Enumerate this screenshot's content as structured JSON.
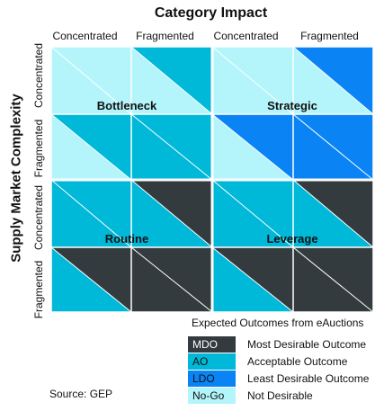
{
  "title_top": "Category Impact",
  "title_left": "Supply Market Complexity",
  "column_headers": [
    "Concentrated",
    "Fragmented",
    "Concentrated",
    "Fragmented"
  ],
  "row_headers": [
    "Concentrated",
    "Fragmented",
    "Concentrated",
    "Fragmented"
  ],
  "quadrants": [
    {
      "label": "Bottleneck"
    },
    {
      "label": "Strategic"
    },
    {
      "label": "Routine"
    },
    {
      "label": "Leverage"
    }
  ],
  "colors": {
    "MDO": "#333b3e",
    "AO": "#00b8d8",
    "LDO": "#0a84f5",
    "NoGo": "#b3f5fb"
  },
  "cells": [
    [
      [
        "NoGo",
        "NoGo"
      ],
      [
        "AO",
        "NoGo"
      ],
      [
        "NoGo",
        "NoGo"
      ],
      [
        "LDO",
        "NoGo"
      ]
    ],
    [
      [
        "AO",
        "NoGo"
      ],
      [
        "AO",
        "AO"
      ],
      [
        "LDO",
        "NoGo"
      ],
      [
        "LDO",
        "LDO"
      ]
    ],
    [
      [
        "AO",
        "AO"
      ],
      [
        "MDO",
        "AO"
      ],
      [
        "AO",
        "AO"
      ],
      [
        "MDO",
        "AO"
      ]
    ],
    [
      [
        "MDO",
        "AO"
      ],
      [
        "MDO",
        "MDO"
      ],
      [
        "MDO",
        "AO"
      ],
      [
        "MDO",
        "MDO"
      ]
    ]
  ],
  "legend": {
    "caption": "Expected Outcomes from eAuctions",
    "items": [
      {
        "code": "MDO",
        "key": "MDO",
        "description": "Most Desirable Outcome",
        "text_color": "#ffffff"
      },
      {
        "code": "AO",
        "key": "AO",
        "description": "Acceptable Outcome",
        "text_color": "#111111"
      },
      {
        "code": "LDO",
        "key": "LDO",
        "description": "Least Desirable Outcome",
        "text_color": "#111111"
      },
      {
        "code": "No-Go",
        "key": "NoGo",
        "description": "Not Desirable",
        "text_color": "#111111"
      }
    ]
  },
  "source": "Source: GEP"
}
